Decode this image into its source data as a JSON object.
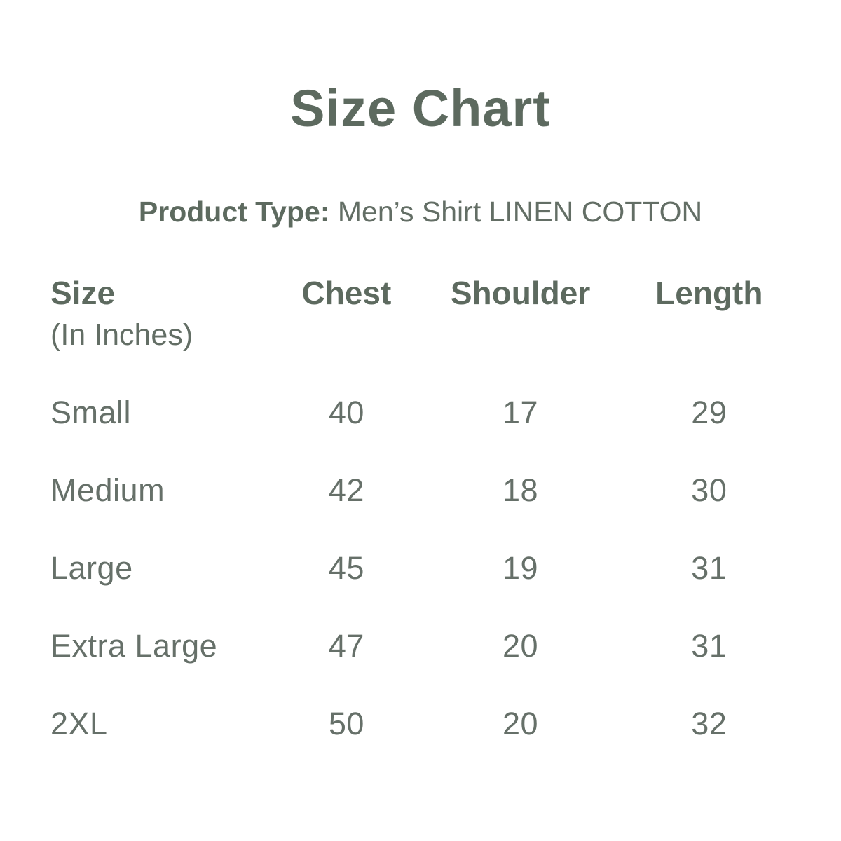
{
  "page": {
    "background_color": "#ffffff",
    "text_color_strong": "#5d6a5f",
    "text_color_regular": "#667069"
  },
  "title": "Size Chart",
  "product_type": {
    "label": "Product Type:",
    "value": "Men’s Shirt LINEN COTTON"
  },
  "table": {
    "headers": {
      "size": "Size",
      "size_note": "(In Inches)",
      "chest": "Chest",
      "shoulder": "Shoulder",
      "length": "Length"
    },
    "rows": [
      {
        "size": "Small",
        "chest": "40",
        "shoulder": "17",
        "length": "29"
      },
      {
        "size": "Medium",
        "chest": "42",
        "shoulder": "18",
        "length": "30"
      },
      {
        "size": "Large",
        "chest": "45",
        "shoulder": "19",
        "length": "31"
      },
      {
        "size": "Extra Large",
        "chest": "47",
        "shoulder": "20",
        "length": "31"
      },
      {
        "size": "2XL",
        "chest": "50",
        "shoulder": "20",
        "length": "32"
      }
    ]
  }
}
